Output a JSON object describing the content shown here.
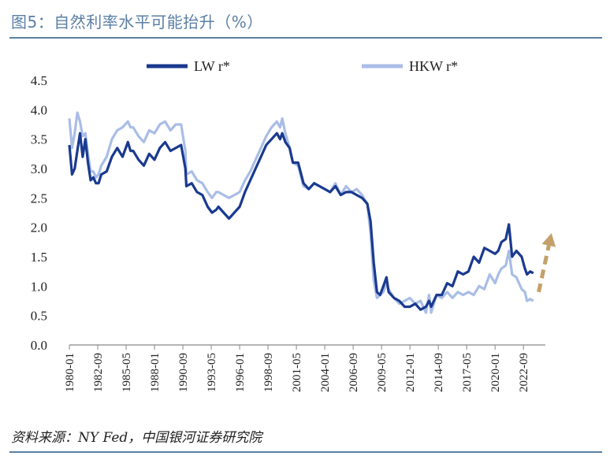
{
  "header": {
    "title": "图5：自然利率水平可能抬升（%）"
  },
  "footer": {
    "source": "资料来源：NY Fed，中国银河证券研究院"
  },
  "colors": {
    "lw": "#1a3a8f",
    "hkw": "#a9bde6",
    "arrow": "#c4a06a",
    "axis": "#888888",
    "title": "#5b7fa6"
  },
  "chart_data": {
    "type": "line",
    "ylim": [
      0,
      4.5
    ],
    "yticks": [
      "4.5",
      "4.0",
      "3.5",
      "3.0",
      "2.5",
      "2.0",
      "1.5",
      "1.0",
      "0.5",
      "0.0"
    ],
    "xlim": [
      1980.0,
      2024.58
    ],
    "xtick_labels": [
      "1980-01",
      "1982-09",
      "1985-05",
      "1988-01",
      "1990-09",
      "1993-05",
      "1996-01",
      "1998-09",
      "2001-05",
      "2004-01",
      "2006-09",
      "2009-05",
      "2012-01",
      "2014-09",
      "2017-05",
      "2020-01",
      "2022-09"
    ],
    "legend_position": "top",
    "series": [
      {
        "name": "LW r*",
        "points": [
          [
            1980.0,
            3.4
          ],
          [
            1980.25,
            2.9
          ],
          [
            1980.5,
            3.0
          ],
          [
            1980.75,
            3.3
          ],
          [
            1981.0,
            3.6
          ],
          [
            1981.25,
            3.2
          ],
          [
            1981.5,
            3.5
          ],
          [
            1981.75,
            3.1
          ],
          [
            1982.0,
            2.8
          ],
          [
            1982.25,
            2.85
          ],
          [
            1982.5,
            2.75
          ],
          [
            1982.75,
            2.75
          ],
          [
            1983.0,
            2.9
          ],
          [
            1983.5,
            2.95
          ],
          [
            1984.0,
            3.2
          ],
          [
            1984.5,
            3.35
          ],
          [
            1985.0,
            3.2
          ],
          [
            1985.5,
            3.45
          ],
          [
            1985.75,
            3.3
          ],
          [
            1986.0,
            3.3
          ],
          [
            1986.5,
            3.15
          ],
          [
            1987.0,
            3.05
          ],
          [
            1987.5,
            3.25
          ],
          [
            1988.0,
            3.15
          ],
          [
            1988.5,
            3.35
          ],
          [
            1989.0,
            3.45
          ],
          [
            1989.5,
            3.3
          ],
          [
            1990.0,
            3.35
          ],
          [
            1990.5,
            3.4
          ],
          [
            1990.9,
            3.0
          ],
          [
            1991.0,
            2.7
          ],
          [
            1991.5,
            2.75
          ],
          [
            1992.0,
            2.6
          ],
          [
            1992.5,
            2.55
          ],
          [
            1993.0,
            2.35
          ],
          [
            1993.4,
            2.25
          ],
          [
            1993.8,
            2.3
          ],
          [
            1994.0,
            2.35
          ],
          [
            1994.5,
            2.25
          ],
          [
            1995.0,
            2.15
          ],
          [
            1995.5,
            2.25
          ],
          [
            1996.0,
            2.35
          ],
          [
            1996.5,
            2.6
          ],
          [
            1997.0,
            2.8
          ],
          [
            1997.5,
            3.0
          ],
          [
            1998.0,
            3.2
          ],
          [
            1998.5,
            3.4
          ],
          [
            1999.0,
            3.5
          ],
          [
            1999.5,
            3.6
          ],
          [
            1999.8,
            3.5
          ],
          [
            2000.0,
            3.6
          ],
          [
            2000.3,
            3.45
          ],
          [
            2000.7,
            3.35
          ],
          [
            2001.0,
            3.1
          ],
          [
            2001.5,
            3.1
          ],
          [
            2002.0,
            2.75
          ],
          [
            2002.5,
            2.65
          ],
          [
            2003.0,
            2.75
          ],
          [
            2003.5,
            2.7
          ],
          [
            2004.0,
            2.65
          ],
          [
            2004.5,
            2.6
          ],
          [
            2005.0,
            2.7
          ],
          [
            2005.5,
            2.55
          ],
          [
            2006.0,
            2.6
          ],
          [
            2006.5,
            2.6
          ],
          [
            2007.0,
            2.55
          ],
          [
            2007.5,
            2.5
          ],
          [
            2008.0,
            2.4
          ],
          [
            2008.3,
            2.1
          ],
          [
            2008.6,
            1.4
          ],
          [
            2008.9,
            0.9
          ],
          [
            2009.2,
            0.85
          ],
          [
            2009.5,
            1.0
          ],
          [
            2009.8,
            1.15
          ],
          [
            2010.0,
            0.9
          ],
          [
            2010.5,
            0.8
          ],
          [
            2011.0,
            0.75
          ],
          [
            2011.5,
            0.65
          ],
          [
            2012.0,
            0.65
          ],
          [
            2012.5,
            0.7
          ],
          [
            2013.0,
            0.6
          ],
          [
            2013.5,
            0.65
          ],
          [
            2013.8,
            0.75
          ],
          [
            2014.0,
            0.65
          ],
          [
            2014.5,
            0.85
          ],
          [
            2015.0,
            0.85
          ],
          [
            2015.5,
            1.05
          ],
          [
            2016.0,
            1.0
          ],
          [
            2016.5,
            1.25
          ],
          [
            2017.0,
            1.2
          ],
          [
            2017.5,
            1.25
          ],
          [
            2018.0,
            1.5
          ],
          [
            2018.5,
            1.4
          ],
          [
            2019.0,
            1.65
          ],
          [
            2019.5,
            1.6
          ],
          [
            2020.0,
            1.55
          ],
          [
            2020.3,
            1.6
          ],
          [
            2020.6,
            1.75
          ],
          [
            2021.0,
            1.8
          ],
          [
            2021.3,
            2.05
          ],
          [
            2021.6,
            1.5
          ],
          [
            2022.0,
            1.6
          ],
          [
            2022.5,
            1.5
          ],
          [
            2022.8,
            1.3
          ],
          [
            2023.0,
            1.2
          ],
          [
            2023.3,
            1.25
          ],
          [
            2023.6,
            1.22
          ]
        ]
      },
      {
        "name": "HKW r*",
        "points": [
          [
            1980.0,
            3.85
          ],
          [
            1980.25,
            3.35
          ],
          [
            1980.5,
            3.6
          ],
          [
            1980.75,
            3.95
          ],
          [
            1981.0,
            3.8
          ],
          [
            1981.25,
            3.55
          ],
          [
            1981.5,
            3.6
          ],
          [
            1981.75,
            3.25
          ],
          [
            1982.0,
            2.95
          ],
          [
            1982.25,
            2.95
          ],
          [
            1982.5,
            2.85
          ],
          [
            1982.75,
            2.9
          ],
          [
            1983.0,
            3.05
          ],
          [
            1983.5,
            3.2
          ],
          [
            1984.0,
            3.5
          ],
          [
            1984.5,
            3.65
          ],
          [
            1985.0,
            3.7
          ],
          [
            1985.5,
            3.8
          ],
          [
            1985.75,
            3.7
          ],
          [
            1986.0,
            3.7
          ],
          [
            1986.5,
            3.55
          ],
          [
            1987.0,
            3.45
          ],
          [
            1987.5,
            3.65
          ],
          [
            1988.0,
            3.6
          ],
          [
            1988.5,
            3.75
          ],
          [
            1989.0,
            3.8
          ],
          [
            1989.5,
            3.65
          ],
          [
            1990.0,
            3.75
          ],
          [
            1990.5,
            3.75
          ],
          [
            1990.9,
            3.3
          ],
          [
            1991.0,
            2.9
          ],
          [
            1991.5,
            2.95
          ],
          [
            1992.0,
            2.8
          ],
          [
            1992.5,
            2.75
          ],
          [
            1993.0,
            2.6
          ],
          [
            1993.4,
            2.5
          ],
          [
            1993.8,
            2.6
          ],
          [
            1994.0,
            2.6
          ],
          [
            1994.5,
            2.55
          ],
          [
            1995.0,
            2.5
          ],
          [
            1995.5,
            2.55
          ],
          [
            1996.0,
            2.6
          ],
          [
            1996.5,
            2.8
          ],
          [
            1997.0,
            2.95
          ],
          [
            1997.5,
            3.15
          ],
          [
            1998.0,
            3.35
          ],
          [
            1998.5,
            3.55
          ],
          [
            1999.0,
            3.7
          ],
          [
            1999.5,
            3.8
          ],
          [
            1999.8,
            3.7
          ],
          [
            2000.0,
            3.85
          ],
          [
            2000.3,
            3.6
          ],
          [
            2000.7,
            3.35
          ],
          [
            2001.0,
            3.1
          ],
          [
            2001.5,
            3.05
          ],
          [
            2002.0,
            2.7
          ],
          [
            2002.5,
            2.65
          ],
          [
            2003.0,
            2.75
          ],
          [
            2003.5,
            2.7
          ],
          [
            2004.0,
            2.65
          ],
          [
            2004.5,
            2.6
          ],
          [
            2005.0,
            2.75
          ],
          [
            2005.5,
            2.55
          ],
          [
            2006.0,
            2.7
          ],
          [
            2006.5,
            2.6
          ],
          [
            2007.0,
            2.65
          ],
          [
            2007.5,
            2.55
          ],
          [
            2008.0,
            2.4
          ],
          [
            2008.3,
            1.9
          ],
          [
            2008.6,
            1.1
          ],
          [
            2008.9,
            0.8
          ],
          [
            2009.2,
            0.85
          ],
          [
            2009.5,
            0.9
          ],
          [
            2009.8,
            1.05
          ],
          [
            2010.0,
            0.95
          ],
          [
            2010.5,
            0.8
          ],
          [
            2011.0,
            0.7
          ],
          [
            2011.5,
            0.75
          ],
          [
            2012.0,
            0.8
          ],
          [
            2012.5,
            0.7
          ],
          [
            2013.0,
            0.75
          ],
          [
            2013.5,
            0.55
          ],
          [
            2013.8,
            0.85
          ],
          [
            2014.0,
            0.55
          ],
          [
            2014.5,
            0.85
          ],
          [
            2015.0,
            0.8
          ],
          [
            2015.5,
            0.9
          ],
          [
            2016.0,
            0.8
          ],
          [
            2016.5,
            0.9
          ],
          [
            2017.0,
            0.85
          ],
          [
            2017.5,
            0.9
          ],
          [
            2018.0,
            0.85
          ],
          [
            2018.5,
            1.0
          ],
          [
            2019.0,
            0.95
          ],
          [
            2019.5,
            1.2
          ],
          [
            2020.0,
            1.05
          ],
          [
            2020.3,
            1.2
          ],
          [
            2020.6,
            1.3
          ],
          [
            2021.0,
            1.35
          ],
          [
            2021.3,
            1.6
          ],
          [
            2021.6,
            1.2
          ],
          [
            2022.0,
            1.15
          ],
          [
            2022.5,
            0.95
          ],
          [
            2022.8,
            0.9
          ],
          [
            2023.0,
            0.75
          ],
          [
            2023.3,
            0.78
          ],
          [
            2023.6,
            0.75
          ]
        ]
      }
    ],
    "trend_arrow": {
      "from": [
        2024.1,
        0.9
      ],
      "to": [
        2025.3,
        1.9
      ]
    }
  }
}
